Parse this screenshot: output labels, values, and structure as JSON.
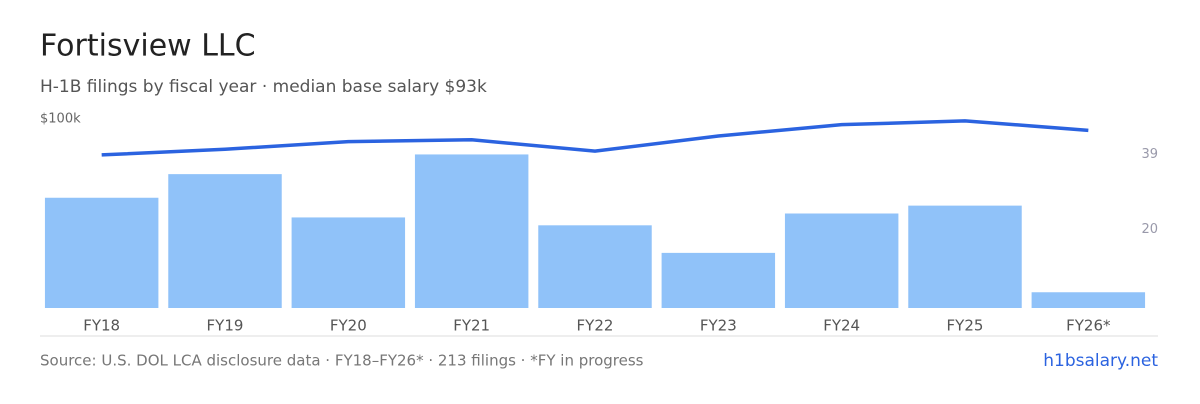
{
  "title": "Fortisview LLC",
  "subtitle": "H-1B filings by fiscal year · median base salary $93k",
  "chart_data": {
    "type": "bar-line",
    "categories": [
      "FY18",
      "FY19",
      "FY20",
      "FY21",
      "FY22",
      "FY23",
      "FY24",
      "FY25",
      "FY26*"
    ],
    "series": [
      {
        "name": "H-1B filings",
        "type": "bar",
        "axis": "y2",
        "color": "#90c2f9",
        "values": [
          28,
          34,
          23,
          39,
          21,
          14,
          24,
          26,
          4
        ]
      },
      {
        "name": "Median base salary",
        "type": "line",
        "axis": "y",
        "color": "#2b63e0",
        "values": [
          81,
          84,
          88,
          89,
          83,
          91,
          97,
          99,
          94
        ]
      }
    ],
    "ylim": [
      0,
      100
    ],
    "yticks": [
      {
        "value": 100,
        "label": "$100k"
      }
    ],
    "y2lim": [
      0,
      48
    ],
    "y2ticks": [
      20,
      39
    ]
  },
  "footer": {
    "source": "Source: U.S. DOL LCA disclosure data · FY18–FY26* · 213 filings · *FY in progress",
    "brand": "h1bsalary.net"
  }
}
